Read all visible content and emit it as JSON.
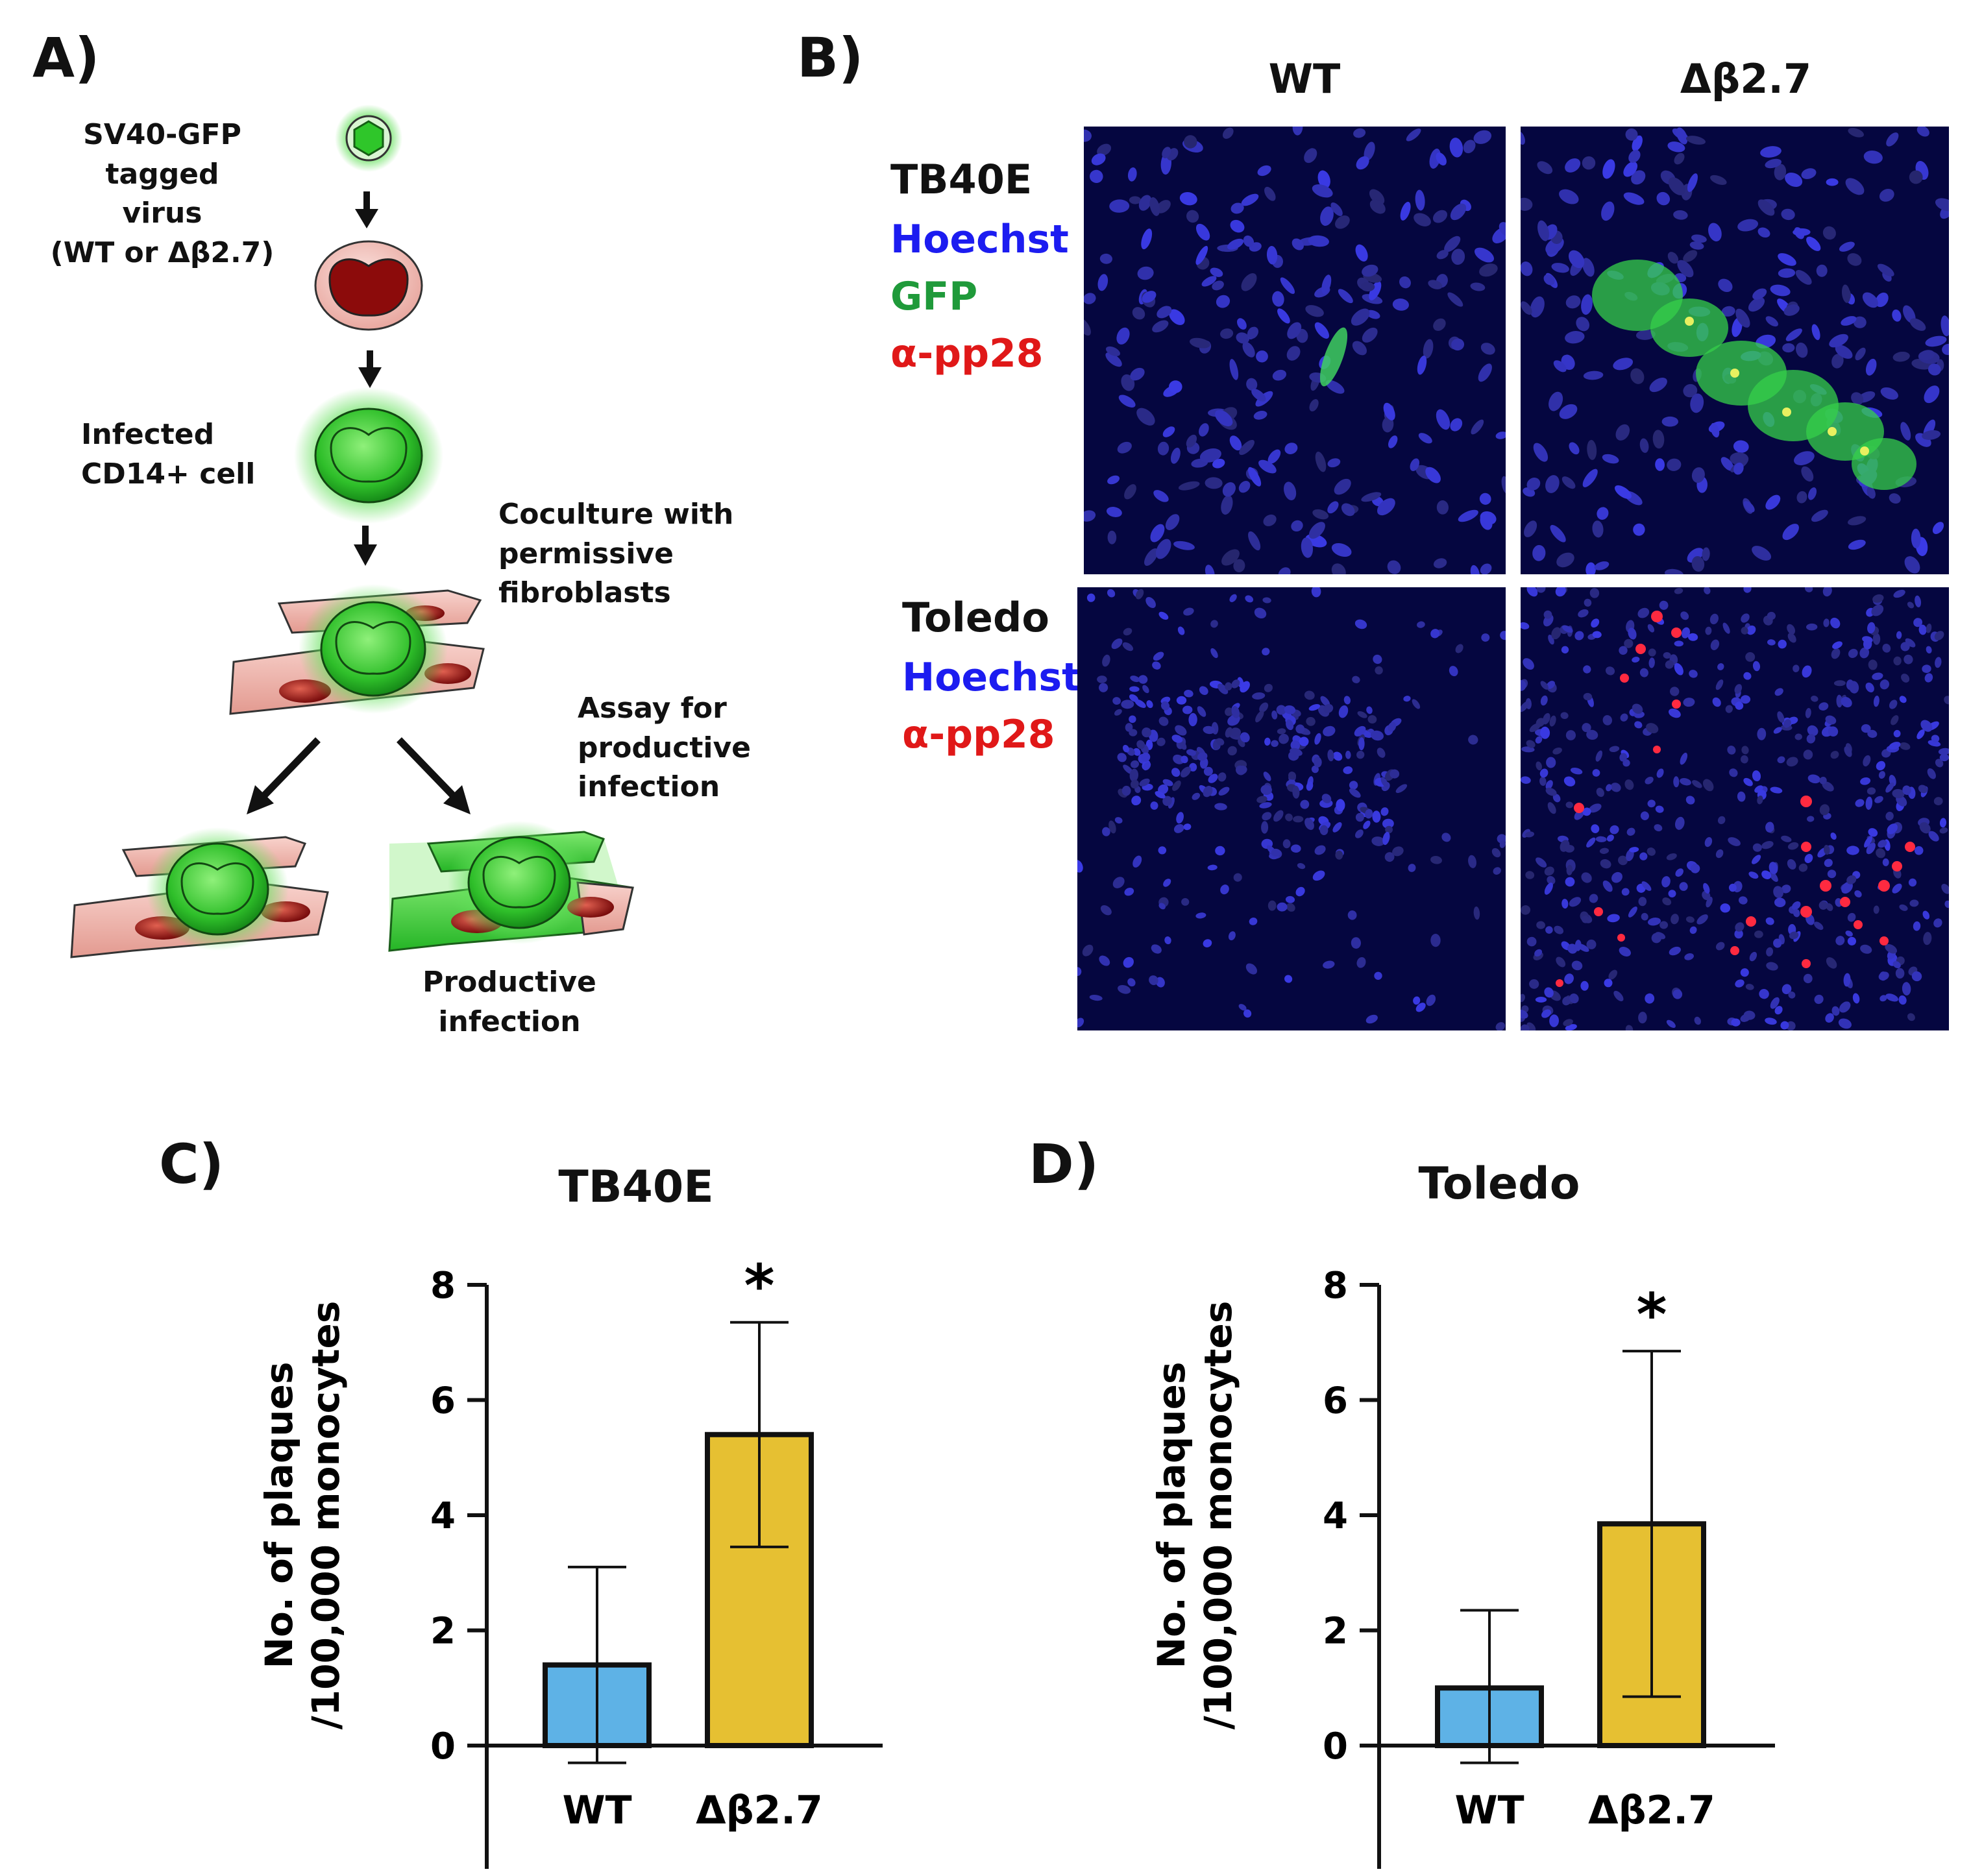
{
  "panel_a": {
    "letter": "A)",
    "virus_label": [
      "SV40-GFP",
      "tagged",
      "virus",
      "(WT or Δβ2.7)"
    ],
    "infected_label": [
      "Infected",
      "CD14+ cell"
    ],
    "coculture_label": [
      "Coculture with",
      "permissive",
      "fibroblasts"
    ],
    "assay_label": [
      "Assay for productive",
      "infection"
    ],
    "productive_label": "Productive infection"
  },
  "panel_b": {
    "letter": "B)",
    "col_wt": "WT",
    "col_mut": "Δβ2.7",
    "row1_strain": "TB40E",
    "row1_stains": [
      "Hoechst",
      "GFP",
      "α-pp28"
    ],
    "row2_strain": "Toledo",
    "row2_stains": [
      "Hoechst",
      "α-pp28"
    ],
    "colors": {
      "hoechst": "#1c1cf0",
      "gfp": "#1f9a3a",
      "pp28": "#e01818"
    }
  },
  "panel_c": {
    "letter": "C)"
  },
  "panel_d": {
    "letter": "D)"
  },
  "chart_data": [
    {
      "type": "bar",
      "title": "TB40E",
      "ylabel": [
        "No. of plaques",
        "/100,000 monocytes"
      ],
      "categories": [
        "WT",
        "Δβ2.7"
      ],
      "values": [
        1.4,
        5.4
      ],
      "errors": [
        1.7,
        1.95
      ],
      "colors": [
        "#5eb2e6",
        "#e6c032"
      ],
      "significance": [
        "",
        "*"
      ],
      "ylim": [
        0,
        8
      ],
      "yticks": [
        0,
        2,
        4,
        6,
        8
      ]
    },
    {
      "type": "bar",
      "title": "Toledo",
      "ylabel": [
        "No. of plaques",
        "/100,000 monocytes"
      ],
      "categories": [
        "WT",
        "Δβ2.7"
      ],
      "values": [
        1.0,
        3.85
      ],
      "errors": [
        1.35,
        3.0
      ],
      "colors": [
        "#5eb2e6",
        "#e6c032"
      ],
      "significance": [
        "",
        "*"
      ],
      "ylim": [
        0,
        8
      ],
      "yticks": [
        0,
        2,
        4,
        6,
        8
      ]
    }
  ]
}
